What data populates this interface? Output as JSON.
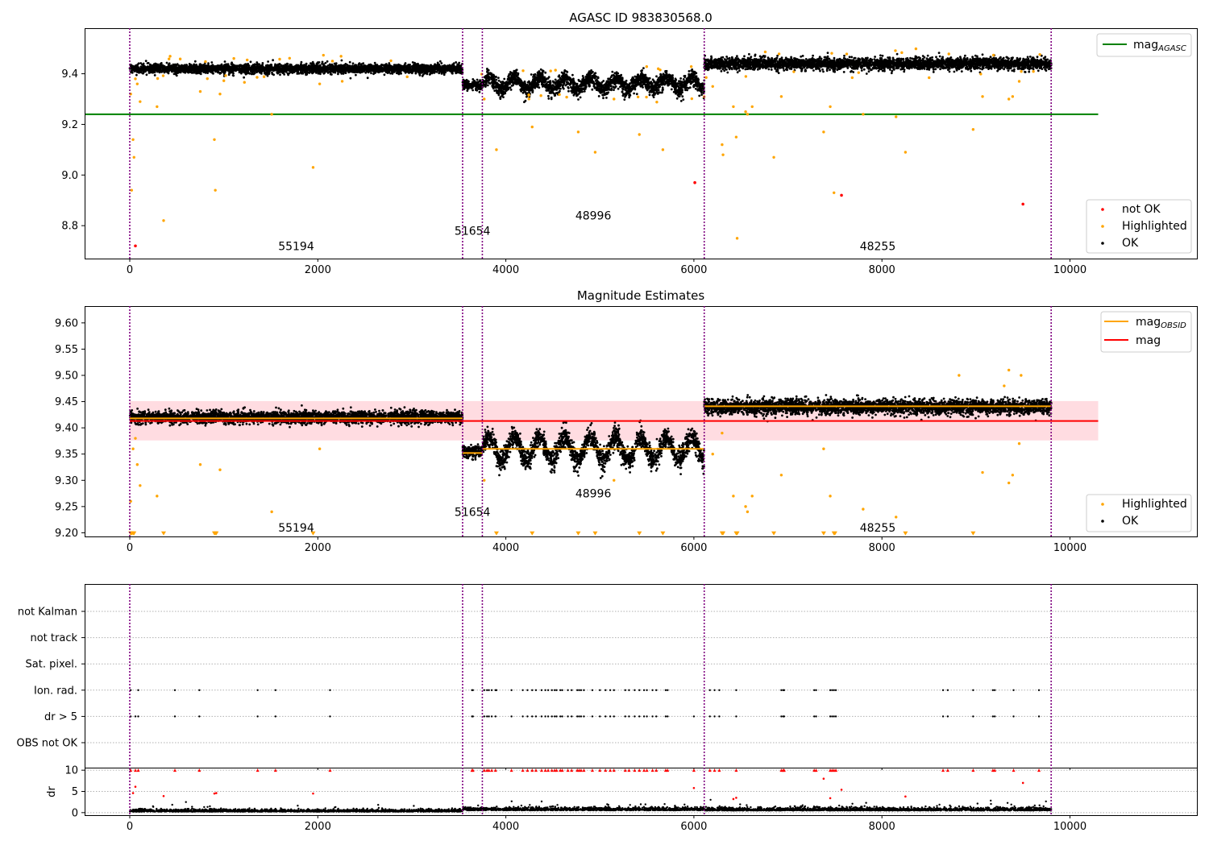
{
  "colors": {
    "ok": "#000000",
    "highlighted": "#ffa500",
    "not_ok": "#ff0000",
    "mag_agasc": "#008000",
    "mag": "#ff0000",
    "mag_obsid": "#ffa500",
    "mag_band": "#ffc0c8",
    "obs_boundary": "#800080",
    "grid": "#b0b0b0"
  },
  "obs_boundaries": [
    0,
    3540,
    3750,
    6110,
    9800
  ],
  "obsids": [
    {
      "id": "55194",
      "x": 1770,
      "start": 0,
      "end": 3540
    },
    {
      "id": "51654",
      "x": 3645,
      "start": 3540,
      "end": 3750
    },
    {
      "id": "48996",
      "x": 4930,
      "start": 3750,
      "end": 6110
    },
    {
      "id": "48255",
      "x": 7955,
      "start": 6110,
      "end": 9800
    }
  ],
  "chart_data": [
    {
      "type": "scatter",
      "title": "AGASC ID 983830568.0",
      "xlim": [
        -480,
        11350
      ],
      "ylim": [
        8.67,
        9.58
      ],
      "x_ticks": [
        0,
        2000,
        4000,
        6000,
        8000,
        10000
      ],
      "y_ticks": [
        8.8,
        9.0,
        9.2,
        9.4
      ],
      "x_tick_labels": [
        "0",
        "2000",
        "4000",
        "6000",
        "8000",
        "10000"
      ],
      "y_tick_labels": [
        "8.8",
        "9.0",
        "9.2",
        "9.4"
      ],
      "obsid_label_y": [
        8.72,
        8.78,
        8.84,
        8.72
      ],
      "mag_agasc": 9.24,
      "mag_agasc_xrange": [
        -480,
        10300
      ],
      "legend_lines": [
        {
          "label": "mag",
          "sub": "AGASC",
          "color": "#008000"
        }
      ],
      "legend_points": [
        {
          "label": "not OK",
          "color": "#ff0000"
        },
        {
          "label": "Highlighted",
          "color": "#ffa500"
        },
        {
          "label": "OK",
          "color": "#000000"
        }
      ],
      "ok_levels": [
        {
          "x": [
            0,
            3540
          ],
          "mean": 9.42,
          "spread": 0.02
        },
        {
          "x": [
            3540,
            3750
          ],
          "mean": 9.355,
          "spread": 0.02
        },
        {
          "x": [
            3750,
            6110
          ],
          "mean": 9.36,
          "spread": 0.035
        },
        {
          "x": [
            6110,
            9800
          ],
          "mean": 9.44,
          "spread": 0.025
        }
      ],
      "highlighted_points": [
        [
          10,
          9.32
        ],
        [
          20,
          8.94
        ],
        [
          35,
          9.14
        ],
        [
          45,
          9.07
        ],
        [
          60,
          9.38
        ],
        [
          80,
          9.36
        ],
        [
          110,
          9.29
        ],
        [
          290,
          9.27
        ],
        [
          360,
          8.82
        ],
        [
          750,
          9.33
        ],
        [
          900,
          9.14
        ],
        [
          910,
          8.94
        ],
        [
          960,
          9.32
        ],
        [
          1510,
          9.24
        ],
        [
          1950,
          9.03
        ],
        [
          2020,
          9.36
        ],
        [
          3770,
          9.3
        ],
        [
          3900,
          9.1
        ],
        [
          4280,
          9.19
        ],
        [
          4770,
          9.17
        ],
        [
          4950,
          9.09
        ],
        [
          5150,
          9.3
        ],
        [
          5420,
          9.16
        ],
        [
          5670,
          9.1
        ],
        [
          6200,
          9.35
        ],
        [
          6300,
          9.12
        ],
        [
          6310,
          9.08
        ],
        [
          6420,
          9.27
        ],
        [
          6450,
          9.15
        ],
        [
          6460,
          8.75
        ],
        [
          6550,
          9.25
        ],
        [
          6570,
          9.24
        ],
        [
          6620,
          9.27
        ],
        [
          6850,
          9.07
        ],
        [
          6930,
          9.31
        ],
        [
          7380,
          9.17
        ],
        [
          7450,
          9.27
        ],
        [
          7490,
          8.93
        ],
        [
          7800,
          9.24
        ],
        [
          8150,
          9.23
        ],
        [
          8250,
          9.09
        ],
        [
          8970,
          9.18
        ],
        [
          9070,
          9.31
        ],
        [
          9350,
          9.3
        ],
        [
          9390,
          9.31
        ],
        [
          9460,
          9.37
        ]
      ],
      "not_ok_points": [
        [
          60,
          8.72
        ],
        [
          6010,
          8.97
        ],
        [
          7570,
          8.92
        ],
        [
          9500,
          8.885
        ]
      ]
    },
    {
      "type": "scatter",
      "title": "Magnitude Estimates",
      "xlim": [
        -480,
        11350
      ],
      "ylim": [
        9.193,
        9.632
      ],
      "x_ticks": [
        0,
        2000,
        4000,
        6000,
        8000,
        10000
      ],
      "y_ticks": [
        9.2,
        9.25,
        9.3,
        9.35,
        9.4,
        9.45,
        9.5,
        9.55,
        9.6
      ],
      "x_tick_labels": [
        "0",
        "2000",
        "4000",
        "6000",
        "8000",
        "10000"
      ],
      "y_tick_labels": [
        "9.20",
        "9.25",
        "9.30",
        "9.35",
        "9.40",
        "9.45",
        "9.50",
        "9.55",
        "9.60"
      ],
      "obsid_label_y": [
        9.21,
        9.24,
        9.275,
        9.21
      ],
      "mag": 9.413,
      "mag_band": [
        9.376,
        9.451
      ],
      "mag_xrange": [
        -480,
        10300
      ],
      "mag_obsid": [
        {
          "x": [
            0,
            3540
          ],
          "y": 9.418
        },
        {
          "x": [
            3540,
            3750
          ],
          "y": 9.352
        },
        {
          "x": [
            3750,
            6110
          ],
          "y": 9.36
        },
        {
          "x": [
            6110,
            9800
          ],
          "y": 9.441
        }
      ],
      "legend_lines": [
        {
          "label": "mag",
          "sub": "OBSID",
          "color": "#ffa500"
        },
        {
          "label": "mag",
          "sub": "",
          "color": "#ff0000"
        }
      ],
      "legend_points": [
        {
          "label": "Highlighted",
          "color": "#ffa500"
        },
        {
          "label": "OK",
          "color": "#000000"
        }
      ],
      "ok_levels": [
        {
          "x": [
            0,
            3540
          ],
          "mean": 9.42,
          "spread": 0.013
        },
        {
          "x": [
            3540,
            3750
          ],
          "mean": 9.355,
          "spread": 0.012
        },
        {
          "x": [
            3750,
            6110
          ],
          "mean": 9.36,
          "spread": 0.022
        },
        {
          "x": [
            6110,
            9800
          ],
          "mean": 9.44,
          "spread": 0.016
        }
      ],
      "highlighted_points": [
        [
          10,
          9.26
        ],
        [
          35,
          9.36
        ],
        [
          60,
          9.38
        ],
        [
          80,
          9.33
        ],
        [
          110,
          9.29
        ],
        [
          290,
          9.27
        ],
        [
          750,
          9.33
        ],
        [
          960,
          9.32
        ],
        [
          1510,
          9.24
        ],
        [
          2020,
          9.36
        ],
        [
          3770,
          9.3
        ],
        [
          5150,
          9.3
        ],
        [
          6200,
          9.35
        ],
        [
          6300,
          9.39
        ],
        [
          6420,
          9.27
        ],
        [
          6550,
          9.25
        ],
        [
          6570,
          9.24
        ],
        [
          6620,
          9.27
        ],
        [
          6930,
          9.31
        ],
        [
          7380,
          9.36
        ],
        [
          7450,
          9.27
        ],
        [
          7800,
          9.245
        ],
        [
          8150,
          9.23
        ],
        [
          9070,
          9.315
        ],
        [
          9350,
          9.295
        ],
        [
          9390,
          9.31
        ],
        [
          9460,
          9.37
        ],
        [
          9300,
          9.48
        ],
        [
          9350,
          9.51
        ],
        [
          9480,
          9.5
        ],
        [
          8820,
          9.5
        ]
      ],
      "clipped_markers": [
        10,
        20,
        35,
        45,
        900,
        910,
        920,
        360,
        1950,
        3900,
        4280,
        4770,
        4950,
        5420,
        5670,
        6300,
        6310,
        6450,
        6460,
        6850,
        7380,
        7490,
        7500,
        8250,
        8970
      ]
    },
    {
      "type": "scatter",
      "xlim": [
        -480,
        11350
      ],
      "y_categories": [
        "not Kalman",
        "not track",
        "Sat. pixel.",
        "Ion. rad.",
        "dr > 5",
        "OBS not OK"
      ],
      "flag_points": {
        "Ion. rad.": [
          10,
          90,
          480,
          740,
          1360,
          1550,
          2130,
          3640,
          3650,
          3770,
          3800,
          3820,
          3850,
          3890,
          3900,
          4060,
          4180,
          4230,
          4280,
          4320,
          4380,
          4420,
          4450,
          4490,
          4520,
          4540,
          4580,
          4600,
          4660,
          4700,
          4760,
          4780,
          4800,
          4830,
          4920,
          5000,
          5060,
          5110,
          5150,
          5270,
          5310,
          5370,
          5420,
          5470,
          5500,
          5560,
          5600,
          5700,
          5720,
          6170,
          6220,
          6270,
          6450,
          6930,
          6950,
          6960,
          7280,
          7300,
          7450,
          7470,
          7490,
          7510,
          8650,
          8700,
          8970,
          9180,
          9200,
          9400,
          9670
        ],
        "dr > 5": [
          10,
          60,
          90,
          480,
          740,
          1360,
          1550,
          2130,
          3640,
          3650,
          3770,
          3800,
          3820,
          3850,
          3890,
          4060,
          4180,
          4230,
          4280,
          4320,
          4380,
          4420,
          4450,
          4490,
          4520,
          4540,
          4580,
          4600,
          4660,
          4700,
          4760,
          4780,
          4800,
          4830,
          4920,
          5000,
          5060,
          5110,
          5150,
          5270,
          5310,
          5370,
          5420,
          5470,
          5500,
          5560,
          5600,
          5700,
          5720,
          6000,
          6170,
          6220,
          6270,
          6450,
          6930,
          6950,
          6960,
          7280,
          7300,
          7450,
          7470,
          7490,
          7510,
          8650,
          8700,
          8970,
          9180,
          9200,
          9400,
          9670
        ]
      }
    },
    {
      "type": "scatter",
      "xlim": [
        -480,
        11350
      ],
      "ylim": [
        -0.6,
        10.6
      ],
      "ylabel": "dr",
      "y_ticks": [
        0,
        5,
        10
      ],
      "y_tick_labels": [
        "0",
        "5",
        "10"
      ],
      "x_ticks": [
        0,
        2000,
        4000,
        6000,
        8000,
        10000
      ],
      "x_tick_labels": [
        "0",
        "2000",
        "4000",
        "6000",
        "8000",
        "10000"
      ],
      "clip_value": 10,
      "red_points": [
        [
          35,
          4.6
        ],
        [
          60,
          6.1
        ],
        [
          360,
          3.9
        ],
        [
          900,
          4.5
        ],
        [
          920,
          4.6
        ],
        [
          1950,
          4.5
        ],
        [
          6000,
          5.8
        ],
        [
          6420,
          3.2
        ],
        [
          6450,
          3.5
        ],
        [
          7380,
          8.0
        ],
        [
          7450,
          3.4
        ],
        [
          7570,
          5.4
        ],
        [
          8250,
          3.8
        ],
        [
          9500,
          7.0
        ]
      ],
      "black_levels": [
        {
          "x": [
            0,
            3540
          ],
          "mean": 0.35,
          "spread": 0.25
        },
        {
          "x": [
            3540,
            6110
          ],
          "mean": 0.7,
          "spread": 0.35
        },
        {
          "x": [
            6110,
            9800
          ],
          "mean": 0.65,
          "spread": 0.35
        }
      ]
    }
  ]
}
